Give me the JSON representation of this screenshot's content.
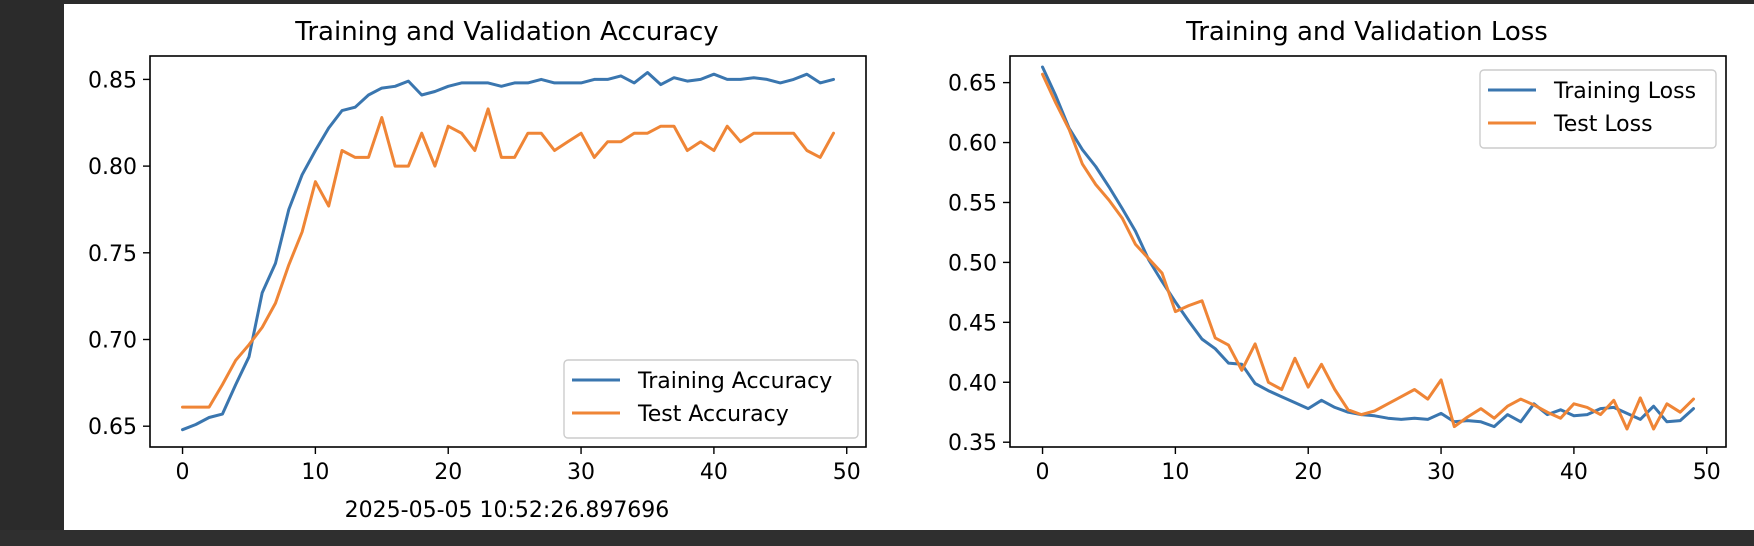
{
  "colors": {
    "training": "#3a76af",
    "test": "#ef8536",
    "background": "#ffffff",
    "frame": "#000000",
    "window": "#2b2b2b"
  },
  "footer": {
    "timestamp": "2025-05-05 10:52:26.897696"
  },
  "chart_data": [
    {
      "type": "line",
      "title": "Training and Validation Accuracy",
      "xlabel": "",
      "ylabel": "",
      "xlim": [
        -2.45,
        51.45
      ],
      "ylim": [
        0.638,
        0.8635
      ],
      "xticks": [
        0,
        10,
        20,
        30,
        40,
        50
      ],
      "yticks": [
        0.65,
        0.7,
        0.75,
        0.8,
        0.85
      ],
      "ytick_labels": [
        "0.65",
        "0.70",
        "0.75",
        "0.80",
        "0.85"
      ],
      "grid": false,
      "legend_position": "lower-right",
      "x": [
        0,
        1,
        2,
        3,
        4,
        5,
        6,
        7,
        8,
        9,
        10,
        11,
        12,
        13,
        14,
        15,
        16,
        17,
        18,
        19,
        20,
        21,
        22,
        23,
        24,
        25,
        26,
        27,
        28,
        29,
        30,
        31,
        32,
        33,
        34,
        35,
        36,
        37,
        38,
        39,
        40,
        41,
        42,
        43,
        44,
        45,
        46,
        47,
        48,
        49
      ],
      "series": [
        {
          "name": "Training Accuracy",
          "color_key": "training",
          "values": [
            0.648,
            0.651,
            0.655,
            0.657,
            0.674,
            0.69,
            0.727,
            0.744,
            0.775,
            0.795,
            0.809,
            0.822,
            0.832,
            0.834,
            0.841,
            0.845,
            0.846,
            0.849,
            0.841,
            0.843,
            0.846,
            0.848,
            0.848,
            0.848,
            0.846,
            0.848,
            0.848,
            0.85,
            0.848,
            0.848,
            0.848,
            0.85,
            0.85,
            0.852,
            0.848,
            0.854,
            0.847,
            0.851,
            0.849,
            0.85,
            0.853,
            0.85,
            0.85,
            0.851,
            0.85,
            0.848,
            0.85,
            0.853,
            0.848,
            0.85
          ]
        },
        {
          "name": "Test Accuracy",
          "color_key": "test",
          "values": [
            0.661,
            0.661,
            0.661,
            0.674,
            0.688,
            0.697,
            0.707,
            0.721,
            0.743,
            0.762,
            0.791,
            0.777,
            0.809,
            0.805,
            0.805,
            0.828,
            0.8,
            0.8,
            0.819,
            0.8,
            0.823,
            0.819,
            0.809,
            0.833,
            0.805,
            0.805,
            0.819,
            0.819,
            0.809,
            0.814,
            0.819,
            0.805,
            0.814,
            0.814,
            0.819,
            0.819,
            0.823,
            0.823,
            0.809,
            0.814,
            0.809,
            0.823,
            0.814,
            0.819,
            0.819,
            0.819,
            0.819,
            0.809,
            0.805,
            0.819
          ]
        }
      ]
    },
    {
      "type": "line",
      "title": "Training and Validation Loss",
      "xlabel": "",
      "ylabel": "",
      "xlim": [
        -2.45,
        51.45
      ],
      "ylim": [
        0.346,
        0.6722
      ],
      "xticks": [
        0,
        10,
        20,
        30,
        40,
        50
      ],
      "yticks": [
        0.35,
        0.4,
        0.45,
        0.5,
        0.55,
        0.6,
        0.65
      ],
      "ytick_labels": [
        "0.35",
        "0.40",
        "0.45",
        "0.50",
        "0.55",
        "0.60",
        "0.65"
      ],
      "grid": false,
      "legend_position": "upper-right",
      "x": [
        0,
        1,
        2,
        3,
        4,
        5,
        6,
        7,
        8,
        9,
        10,
        11,
        12,
        13,
        14,
        15,
        16,
        17,
        18,
        19,
        20,
        21,
        22,
        23,
        24,
        25,
        26,
        27,
        28,
        29,
        30,
        31,
        32,
        33,
        34,
        35,
        36,
        37,
        38,
        39,
        40,
        41,
        42,
        43,
        44,
        45,
        46,
        47,
        48,
        49
      ],
      "series": [
        {
          "name": "Training Loss",
          "color_key": "training",
          "values": [
            0.663,
            0.639,
            0.612,
            0.594,
            0.58,
            0.563,
            0.545,
            0.526,
            0.502,
            0.484,
            0.467,
            0.451,
            0.436,
            0.428,
            0.416,
            0.415,
            0.399,
            0.393,
            0.388,
            0.383,
            0.378,
            0.385,
            0.379,
            0.375,
            0.373,
            0.372,
            0.37,
            0.369,
            0.37,
            0.369,
            0.374,
            0.367,
            0.368,
            0.367,
            0.363,
            0.373,
            0.367,
            0.382,
            0.373,
            0.377,
            0.372,
            0.373,
            0.378,
            0.379,
            0.374,
            0.369,
            0.38,
            0.367,
            0.368,
            0.378
          ]
        },
        {
          "name": "Test Loss",
          "color_key": "test",
          "values": [
            0.657,
            0.633,
            0.611,
            0.582,
            0.565,
            0.552,
            0.537,
            0.515,
            0.503,
            0.491,
            0.459,
            0.464,
            0.468,
            0.437,
            0.431,
            0.41,
            0.432,
            0.4,
            0.394,
            0.42,
            0.396,
            0.415,
            0.394,
            0.377,
            0.373,
            0.376,
            0.382,
            0.388,
            0.394,
            0.386,
            0.402,
            0.363,
            0.371,
            0.378,
            0.37,
            0.38,
            0.386,
            0.381,
            0.375,
            0.37,
            0.382,
            0.379,
            0.373,
            0.385,
            0.361,
            0.387,
            0.361,
            0.382,
            0.375,
            0.386
          ]
        }
      ]
    }
  ]
}
